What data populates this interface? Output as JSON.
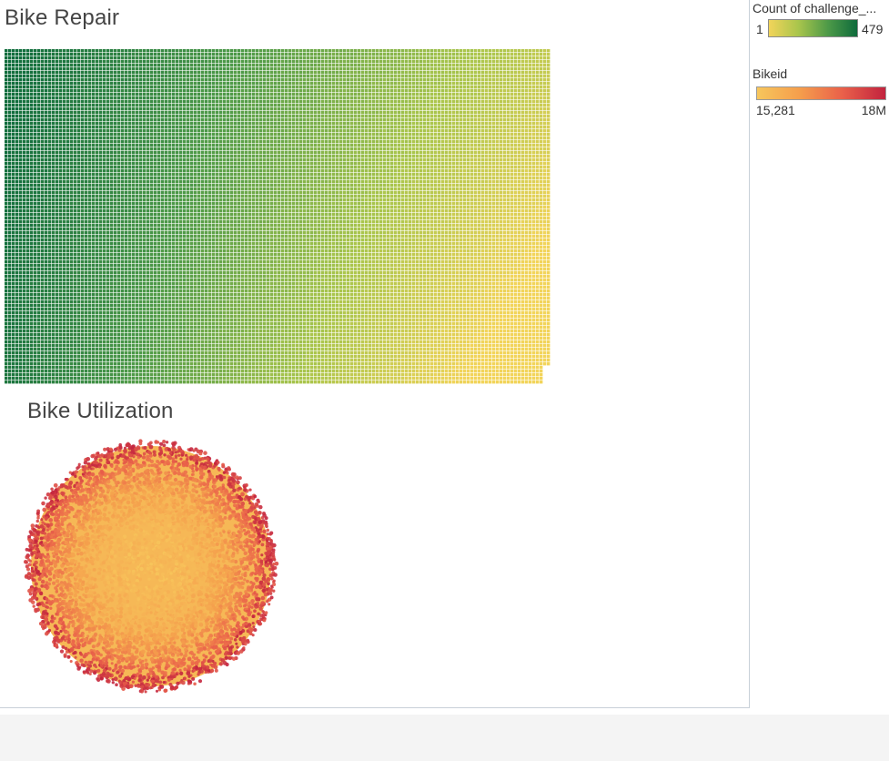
{
  "sheets": {
    "repair_title": "Bike Repair",
    "utilization_title": "Bike Utilization"
  },
  "legends": {
    "count": {
      "title": "Count of challenge_...",
      "min_label": "1",
      "max_label": "479",
      "colors": [
        "#f2d45a",
        "#a9c54c",
        "#4e9a48",
        "#0e6b3c"
      ]
    },
    "bikeid": {
      "title": "Bikeid",
      "min_label": "15,281",
      "max_label": "18M",
      "colors": [
        "#f7c65c",
        "#f59e4c",
        "#e9604a",
        "#c2233e"
      ]
    }
  },
  "chart_data": [
    {
      "type": "heatmap",
      "title": "Bike Repair",
      "encoding": "treemap, one tile per bike, size and color = count of trips",
      "color_range": [
        1,
        479
      ],
      "color_ramp": [
        "#f2d45a",
        "#0e6b3c"
      ],
      "ordering": "descending count from top-left to bottom-right"
    },
    {
      "type": "scatter",
      "title": "Bike Utilization",
      "encoding": "packed bubbles, one circle per bike, color = bikeid",
      "color_range": [
        15281,
        18000000
      ],
      "color_ramp": [
        "#f7c65c",
        "#c2233e"
      ]
    }
  ]
}
